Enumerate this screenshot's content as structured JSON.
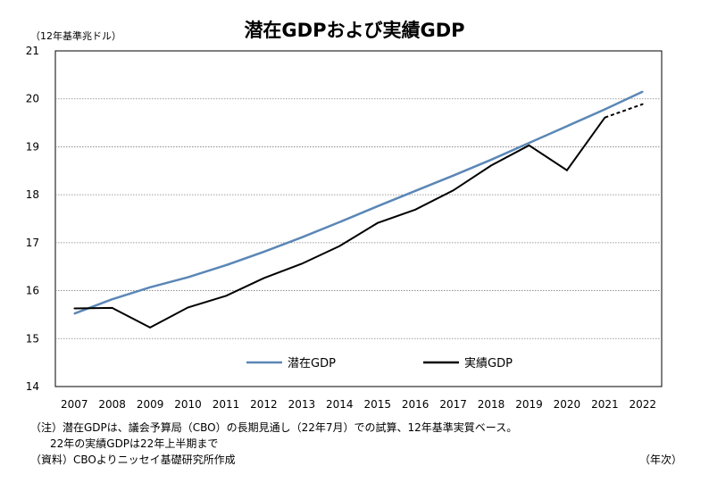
{
  "chart_data": {
    "type": "line",
    "title": "潜在GDPおよび実績GDP",
    "ylabel": "（12年基準兆ドル）",
    "xlabel": "（年次）",
    "ylim": [
      14,
      21
    ],
    "yticks": [
      14,
      15,
      16,
      17,
      18,
      19,
      20,
      21
    ],
    "categories": [
      "2007",
      "2008",
      "2009",
      "2010",
      "2011",
      "2012",
      "2013",
      "2014",
      "2015",
      "2016",
      "2017",
      "2018",
      "2019",
      "2020",
      "2021",
      "2022"
    ],
    "grid": true,
    "legend_position": "inside-bottom",
    "series": [
      {
        "name": "潜在GDP",
        "color": "#5B87B6",
        "x": [
          2007,
          2008,
          2009,
          2010,
          2011,
          2012,
          2013,
          2014,
          2015,
          2016,
          2017,
          2018,
          2019,
          2020,
          2021,
          2022
        ],
        "values": [
          15.52,
          15.82,
          16.07,
          16.28,
          16.53,
          16.81,
          17.11,
          17.43,
          17.76,
          18.08,
          18.4,
          18.73,
          19.08,
          19.43,
          19.78,
          20.15
        ]
      },
      {
        "name": "実績GDP",
        "color": "#000000",
        "x": [
          2007,
          2008,
          2009,
          2010,
          2011,
          2012,
          2013,
          2014,
          2015,
          2016,
          2017,
          2018,
          2019,
          2020,
          2021,
          2022
        ],
        "values": [
          15.63,
          15.64,
          15.23,
          15.65,
          15.89,
          16.26,
          16.56,
          16.93,
          17.41,
          17.69,
          18.09,
          18.61,
          19.03,
          18.51,
          19.61,
          19.89
        ],
        "dashed_from": 2021
      }
    ]
  },
  "notes": [
    "（注）潜在GDPは、議会予算局（CBO）の長期見通し（22年7月）での試算、12年基準実質ベース。",
    "22年の実績GDPは22年上半期まで",
    "（資料）CBOよりニッセイ基礎研究所作成"
  ]
}
